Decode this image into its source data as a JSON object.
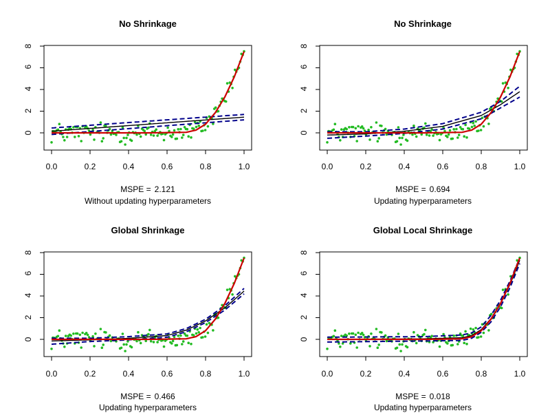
{
  "chart_data": [
    {
      "type": "scatter",
      "title": "No Shrinkage",
      "metric_label": "MSPE =",
      "metric_value": "2.121",
      "subtitle": "Without updating hyperparameters",
      "xlim": [
        0,
        1
      ],
      "ylim": [
        -1.5,
        8.2
      ],
      "x_ticks": [
        "0.0",
        "0.2",
        "0.4",
        "0.6",
        "0.8",
        "1.0"
      ],
      "y_ticks": [
        "0",
        "2",
        "4",
        "6",
        "8"
      ],
      "series": [
        {
          "name": "observations",
          "style": "green points"
        },
        {
          "name": "true function",
          "style": "red line",
          "x": [
            0,
            0.5,
            0.7,
            0.75,
            0.8,
            0.85,
            0.9,
            0.95,
            1.0
          ],
          "y": [
            0,
            0,
            0.05,
            0.25,
            0.8,
            1.85,
            3.3,
            5.2,
            7.5
          ]
        },
        {
          "name": "posterior mean",
          "style": "black line",
          "x": [
            0,
            1
          ],
          "y": [
            0.15,
            1.45
          ]
        },
        {
          "name": "credible band upper",
          "style": "blue dashed",
          "x": [
            0,
            1
          ],
          "y": [
            0.45,
            1.7
          ]
        },
        {
          "name": "credible band lower",
          "style": "blue dashed",
          "x": [
            0,
            1
          ],
          "y": [
            -0.15,
            1.2
          ]
        }
      ]
    },
    {
      "type": "scatter",
      "title": "No Shrinkage",
      "metric_label": "MSPE =",
      "metric_value": "0.694",
      "subtitle": "Updating hyperparameters",
      "xlim": [
        0,
        1
      ],
      "ylim": [
        -1.5,
        8.2
      ],
      "x_ticks": [
        "0.0",
        "0.2",
        "0.4",
        "0.6",
        "0.8",
        "1.0"
      ],
      "y_ticks": [
        "0",
        "2",
        "4",
        "6",
        "8"
      ],
      "series": [
        {
          "name": "observations",
          "style": "green points"
        },
        {
          "name": "true function",
          "style": "red line",
          "x": [
            0,
            0.5,
            0.7,
            0.75,
            0.8,
            0.85,
            0.9,
            0.95,
            1.0
          ],
          "y": [
            0,
            0,
            0.05,
            0.25,
            0.8,
            1.85,
            3.3,
            5.2,
            7.5
          ]
        },
        {
          "name": "posterior mean",
          "style": "black line",
          "x": [
            0,
            0.2,
            0.4,
            0.6,
            0.8,
            0.9,
            1.0
          ],
          "y": [
            -0.2,
            -0.1,
            0.15,
            0.6,
            1.6,
            2.6,
            3.8
          ]
        },
        {
          "name": "credible band upper",
          "style": "blue dashed",
          "x": [
            0,
            0.2,
            0.4,
            0.6,
            0.8,
            0.9,
            1.0
          ],
          "y": [
            0.1,
            0.1,
            0.35,
            0.85,
            1.9,
            2.9,
            4.3
          ]
        },
        {
          "name": "credible band lower",
          "style": "blue dashed",
          "x": [
            0,
            0.2,
            0.4,
            0.6,
            0.8,
            0.9,
            1.0
          ],
          "y": [
            -0.5,
            -0.3,
            -0.05,
            0.35,
            1.3,
            2.3,
            3.3
          ]
        }
      ]
    },
    {
      "type": "scatter",
      "title": "Global Shrinkage",
      "metric_label": "MSPE =",
      "metric_value": "0.466",
      "subtitle": "Updating hyperparameters",
      "xlim": [
        0,
        1
      ],
      "ylim": [
        -1.5,
        8.2
      ],
      "x_ticks": [
        "0.0",
        "0.2",
        "0.4",
        "0.6",
        "0.8",
        "1.0"
      ],
      "y_ticks": [
        "0",
        "2",
        "4",
        "6",
        "8"
      ],
      "series": [
        {
          "name": "observations",
          "style": "green points"
        },
        {
          "name": "true function",
          "style": "red line",
          "x": [
            0,
            0.5,
            0.7,
            0.75,
            0.8,
            0.85,
            0.9,
            0.95,
            1.0
          ],
          "y": [
            0,
            0,
            0.05,
            0.25,
            0.8,
            1.85,
            3.3,
            5.2,
            7.5
          ]
        },
        {
          "name": "posterior mean",
          "style": "black line",
          "x": [
            0,
            0.2,
            0.4,
            0.6,
            0.7,
            0.8,
            0.9,
            1.0
          ],
          "y": [
            -0.15,
            -0.05,
            0.1,
            0.35,
            0.85,
            1.7,
            2.9,
            4.45
          ]
        },
        {
          "name": "credible band upper",
          "style": "blue dashed",
          "x": [
            0,
            0.2,
            0.4,
            0.6,
            0.7,
            0.8,
            0.9,
            1.0
          ],
          "y": [
            0.1,
            0.1,
            0.25,
            0.5,
            1.0,
            1.85,
            3.1,
            4.7
          ]
        },
        {
          "name": "credible band lower",
          "style": "blue dashed",
          "x": [
            0,
            0.2,
            0.4,
            0.6,
            0.7,
            0.8,
            0.9,
            1.0
          ],
          "y": [
            -0.45,
            -0.2,
            -0.05,
            0.2,
            0.7,
            1.55,
            2.7,
            4.2
          ]
        }
      ]
    },
    {
      "type": "scatter",
      "title": "Global Local Shrinkage",
      "metric_label": "MSPE =",
      "metric_value": "0.018",
      "subtitle": "Updating hyperparameters",
      "xlim": [
        0,
        1
      ],
      "ylim": [
        -1.5,
        8.2
      ],
      "x_ticks": [
        "0.0",
        "0.2",
        "0.4",
        "0.6",
        "0.8",
        "1.0"
      ],
      "y_ticks": [
        "0",
        "2",
        "4",
        "6",
        "8"
      ],
      "series": [
        {
          "name": "observations",
          "style": "green points"
        },
        {
          "name": "true function",
          "style": "red line",
          "x": [
            0,
            0.5,
            0.7,
            0.75,
            0.8,
            0.85,
            0.9,
            0.95,
            1.0
          ],
          "y": [
            0,
            0,
            0.05,
            0.25,
            0.8,
            1.85,
            3.3,
            5.2,
            7.5
          ]
        },
        {
          "name": "posterior mean",
          "style": "black line",
          "x": [
            0,
            0.5,
            0.7,
            0.75,
            0.8,
            0.85,
            0.9,
            0.95,
            1.0
          ],
          "y": [
            0,
            0.05,
            0.15,
            0.35,
            0.9,
            1.9,
            3.3,
            5.1,
            7.3
          ]
        },
        {
          "name": "credible band upper",
          "style": "blue dashed",
          "x": [
            0,
            0.5,
            0.7,
            0.75,
            0.8,
            0.85,
            0.9,
            0.95,
            1.0
          ],
          "y": [
            0.2,
            0.25,
            0.4,
            0.6,
            1.15,
            2.2,
            3.6,
            5.4,
            7.5
          ]
        },
        {
          "name": "credible band lower",
          "style": "blue dashed",
          "x": [
            0,
            0.5,
            0.7,
            0.75,
            0.8,
            0.85,
            0.9,
            0.95,
            1.0
          ],
          "y": [
            -0.25,
            -0.15,
            -0.1,
            0.1,
            0.65,
            1.6,
            3.0,
            4.8,
            7.0
          ]
        }
      ]
    }
  ],
  "colors": {
    "points": "#22bb22",
    "true_function": "#cc0000",
    "posterior_mean": "#000000",
    "credible_band": "#00008b",
    "axis": "#000000"
  }
}
